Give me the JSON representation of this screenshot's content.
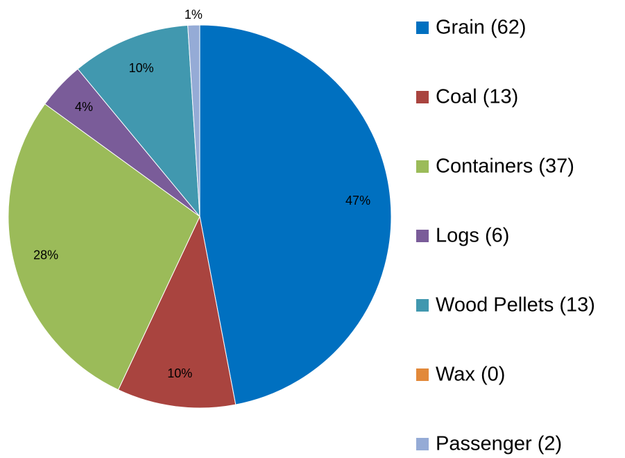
{
  "chart_data": {
    "type": "pie",
    "categories": [
      "Grain (62)",
      "Coal (13)",
      "Containers (37)",
      "Logs (6)",
      "Wood Pellets (13)",
      "Wax (0)",
      "Passenger (2)"
    ],
    "values": [
      47,
      10,
      28,
      4,
      10,
      0,
      1
    ],
    "value_labels": [
      "47%",
      "10%",
      "28%",
      "4%",
      "10%",
      null,
      "1%"
    ],
    "colors": [
      "#0070c0",
      "#a9443f",
      "#9bbb59",
      "#7a5c99",
      "#4198af",
      "#e2893a",
      "#95abd6"
    ],
    "legend": "right"
  }
}
